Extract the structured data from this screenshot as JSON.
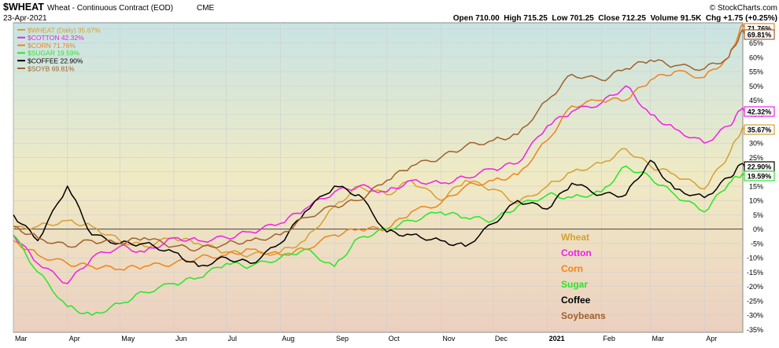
{
  "header": {
    "symbol": "$WHEAT",
    "description": "Wheat - Continuous Contract (EOD)",
    "exchange": "CME",
    "date": "23-Apr-2021",
    "quote": "Open 710.00  High 715.25  Low 701.25  Close 712.25  Volume 91.5K  Chg +1.75 (+0.25%)",
    "credit": "© StockCharts.com"
  },
  "colors": {
    "wheat": "#d4a032",
    "cotton": "#f020e8",
    "corn": "#f0821e",
    "sugar": "#28e628",
    "coffee": "#000000",
    "soybeans": "#a0602c"
  },
  "chart_data": {
    "type": "line",
    "title": "$WHEAT Wheat - Continuous Contract (EOD) CME",
    "xlabel": "",
    "ylabel": "",
    "ylim": [
      -36,
      72
    ],
    "y_ticks": [
      "70%",
      "65%",
      "60%",
      "55%",
      "50%",
      "45%",
      "40%",
      "35%",
      "30%",
      "25%",
      "20%",
      "15%",
      "10%",
      "5%",
      "0%",
      "-5%",
      "-10%",
      "-15%",
      "-20%",
      "-25%",
      "-30%",
      "-35%"
    ],
    "x_ticks": [
      "Mar",
      "Apr",
      "May",
      "Jun",
      "Jul",
      "Aug",
      "Sep",
      "Oct",
      "Nov",
      "Dec",
      "2021",
      "Feb",
      "Mar",
      "Apr"
    ],
    "x_range": [
      "2020-03-01",
      "2021-04-23"
    ],
    "grid": true,
    "legend": "top-left",
    "legend_entries": [
      "$WHEAT (Daily) 35.67%",
      "$COTTON 42.32%",
      "$CORN 71.76%",
      "$SUGAR 19.59%",
      "$COFFEE 22.90%",
      "$SOYB 69.81%"
    ],
    "series_labels": [
      "Wheat",
      "Cotton",
      "Corn",
      "Sugar",
      "Coffee",
      "Soybeans"
    ],
    "end_labels": [
      "71.76%",
      "69.81%",
      "42.32%",
      "35.67%",
      "22.90%",
      "19.59%"
    ],
    "series": [
      {
        "name": "$WHEAT",
        "color": "#d4a032",
        "x": [
          "2020-03-01",
          "2020-03-15",
          "2020-04-01",
          "2020-04-15",
          "2020-05-01",
          "2020-05-15",
          "2020-06-01",
          "2020-06-15",
          "2020-07-01",
          "2020-07-15",
          "2020-08-01",
          "2020-08-15",
          "2020-09-01",
          "2020-09-15",
          "2020-10-01",
          "2020-10-15",
          "2020-11-01",
          "2020-11-15",
          "2020-12-01",
          "2020-12-15",
          "2021-01-01",
          "2021-01-15",
          "2021-02-01",
          "2021-02-15",
          "2021-03-01",
          "2021-03-15",
          "2021-04-01",
          "2021-04-15",
          "2021-04-23"
        ],
        "values": [
          0,
          1,
          3,
          1,
          -4,
          -6,
          -3,
          -5,
          -8,
          -9,
          -8,
          -4,
          8,
          15,
          12,
          17,
          10,
          17,
          14,
          9,
          15,
          20,
          23,
          28,
          22,
          19,
          14,
          26,
          35.67
        ]
      },
      {
        "name": "$COTTON",
        "color": "#f020e8",
        "x": [
          "2020-03-01",
          "2020-03-15",
          "2020-04-01",
          "2020-04-15",
          "2020-05-01",
          "2020-05-15",
          "2020-06-01",
          "2020-06-15",
          "2020-07-01",
          "2020-07-15",
          "2020-08-01",
          "2020-08-15",
          "2020-09-01",
          "2020-09-15",
          "2020-10-01",
          "2020-10-15",
          "2020-11-01",
          "2020-11-15",
          "2020-12-01",
          "2020-12-15",
          "2021-01-01",
          "2021-01-15",
          "2021-02-01",
          "2021-02-15",
          "2021-03-01",
          "2021-03-15",
          "2021-04-01",
          "2021-04-15",
          "2021-04-23"
        ],
        "values": [
          -2,
          -12,
          -19,
          -10,
          -6,
          -8,
          -3,
          -4,
          -3,
          -1,
          2,
          7,
          13,
          15,
          13,
          17,
          16,
          18,
          21,
          23,
          36,
          41,
          44,
          50,
          40,
          35,
          30,
          36,
          42.32
        ]
      },
      {
        "name": "$CORN",
        "color": "#f0821e",
        "x": [
          "2020-03-01",
          "2020-03-15",
          "2020-04-01",
          "2020-04-15",
          "2020-05-01",
          "2020-05-15",
          "2020-06-01",
          "2020-06-15",
          "2020-07-01",
          "2020-07-15",
          "2020-08-01",
          "2020-08-15",
          "2020-09-01",
          "2020-09-15",
          "2020-10-01",
          "2020-10-15",
          "2020-11-01",
          "2020-11-15",
          "2020-12-01",
          "2020-12-15",
          "2021-01-01",
          "2021-01-15",
          "2021-02-01",
          "2021-02-15",
          "2021-03-01",
          "2021-03-15",
          "2021-04-01",
          "2021-04-15",
          "2021-04-23"
        ],
        "values": [
          -4,
          -9,
          -12,
          -13,
          -14,
          -13,
          -12,
          -10,
          -9,
          -7,
          -9,
          -7,
          -2,
          0,
          0,
          6,
          9,
          15,
          17,
          19,
          31,
          43,
          45,
          45,
          52,
          55,
          53,
          60,
          71.76
        ]
      },
      {
        "name": "$SUGAR",
        "color": "#28e628",
        "x": [
          "2020-03-01",
          "2020-03-15",
          "2020-04-01",
          "2020-04-15",
          "2020-05-01",
          "2020-05-15",
          "2020-06-01",
          "2020-06-15",
          "2020-07-01",
          "2020-07-15",
          "2020-08-01",
          "2020-08-15",
          "2020-09-01",
          "2020-09-15",
          "2020-10-01",
          "2020-10-15",
          "2020-11-01",
          "2020-11-15",
          "2020-12-01",
          "2020-12-15",
          "2021-01-01",
          "2021-01-15",
          "2021-02-01",
          "2021-02-15",
          "2021-03-01",
          "2021-03-15",
          "2021-04-01",
          "2021-04-15",
          "2021-04-23"
        ],
        "values": [
          -2,
          -15,
          -27,
          -30,
          -26,
          -22,
          -19,
          -17,
          -12,
          -13,
          -10,
          -7,
          -13,
          -3,
          0,
          3,
          6,
          4,
          3,
          8,
          12,
          11,
          13,
          22,
          18,
          12,
          6,
          16,
          19.59
        ]
      },
      {
        "name": "$COFFEE",
        "color": "#000000",
        "x": [
          "2020-03-01",
          "2020-03-15",
          "2020-04-01",
          "2020-04-15",
          "2020-05-01",
          "2020-05-15",
          "2020-06-01",
          "2020-06-15",
          "2020-07-01",
          "2020-07-15",
          "2020-08-01",
          "2020-08-15",
          "2020-09-01",
          "2020-09-15",
          "2020-10-01",
          "2020-10-15",
          "2020-11-01",
          "2020-11-15",
          "2020-12-01",
          "2020-12-15",
          "2021-01-01",
          "2021-01-15",
          "2021-02-01",
          "2021-02-15",
          "2021-03-01",
          "2021-03-15",
          "2021-04-01",
          "2021-04-15",
          "2021-04-23"
        ],
        "values": [
          5,
          -4,
          15,
          -2,
          -5,
          -5,
          -8,
          -13,
          -10,
          -12,
          -5,
          6,
          15,
          12,
          -1,
          -2,
          -4,
          -6,
          2,
          10,
          7,
          16,
          12,
          12,
          24,
          14,
          11,
          18,
          22.9
        ]
      },
      {
        "name": "$SOYB",
        "color": "#a0602c",
        "x": [
          "2020-03-01",
          "2020-03-15",
          "2020-04-01",
          "2020-04-15",
          "2020-05-01",
          "2020-05-15",
          "2020-06-01",
          "2020-06-15",
          "2020-07-01",
          "2020-07-15",
          "2020-08-01",
          "2020-08-15",
          "2020-09-01",
          "2020-09-15",
          "2020-10-01",
          "2020-10-15",
          "2020-11-01",
          "2020-11-15",
          "2020-12-01",
          "2020-12-15",
          "2021-01-01",
          "2021-01-15",
          "2021-02-01",
          "2021-02-15",
          "2021-03-01",
          "2021-03-15",
          "2021-04-01",
          "2021-04-15",
          "2021-04-23"
        ],
        "values": [
          1,
          -3,
          -6,
          -4,
          -5,
          -3,
          -6,
          -7,
          -5,
          -4,
          -2,
          4,
          8,
          10,
          17,
          22,
          25,
          29,
          31,
          33,
          45,
          54,
          52,
          56,
          59,
          57,
          56,
          60,
          69.81
        ]
      }
    ]
  }
}
